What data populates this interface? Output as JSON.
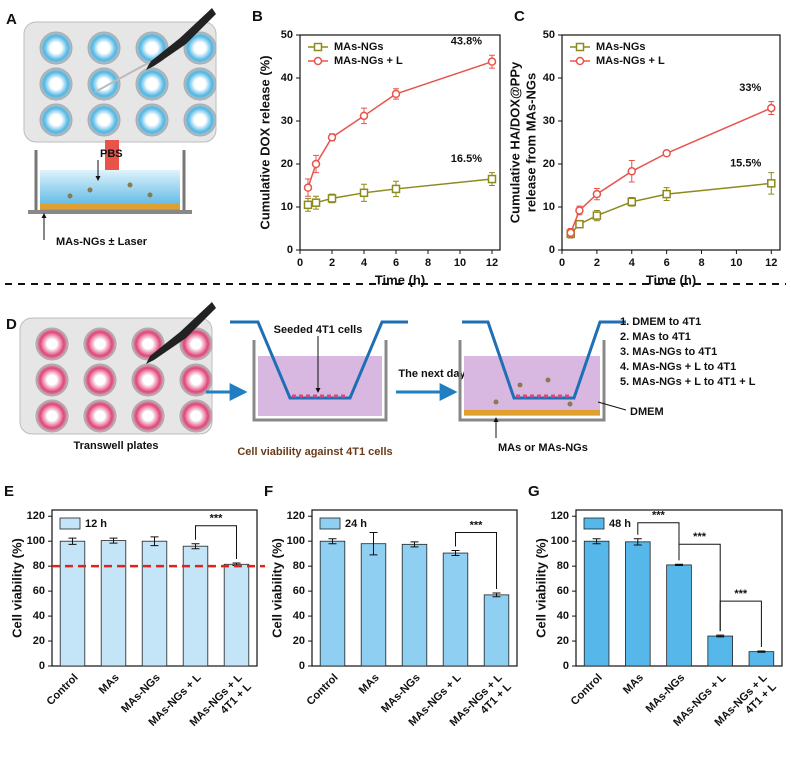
{
  "diagram_a": {
    "panel": "A",
    "labels": [
      "PBS",
      "MAs-NGs ± Laser"
    ]
  },
  "diagram_d": {
    "panel": "D",
    "seeded": "Seeded 4T1 cells",
    "next_day": "The next day",
    "caption": "Cell viability against 4T1 cells",
    "plates": "Transwell plates",
    "medium": "DMEM",
    "added": "MAs or MAs-NGs",
    "groups": [
      "1. DMEM to 4T1",
      "2. MAs to 4T1",
      "3. MAs-NGs to 4T1",
      "4. MAs-NGs + L to 4T1",
      "5. MAs-NGs + L to 4T1 + L"
    ]
  },
  "chart_data": [
    {
      "type": "line",
      "panel": "B",
      "ylabel": "Cumulative DOX release (%)",
      "xlabel": "Time (h)",
      "x": [
        0.5,
        1,
        2,
        4,
        6,
        12
      ],
      "series": [
        {
          "name": "MAs-NGs",
          "color": "#8c8a1c",
          "marker": "square",
          "values": [
            10.5,
            11,
            12,
            13.3,
            14.2,
            16.5
          ],
          "errors": [
            1.5,
            1.5,
            1,
            2,
            1.8,
            1.5
          ]
        },
        {
          "name": "MAs-NGs + L",
          "color": "#e8544c",
          "marker": "circle",
          "values": [
            14.5,
            20,
            26.2,
            31.2,
            36.3,
            43.8
          ],
          "errors": [
            2,
            2,
            0.8,
            1.8,
            1.2,
            1.5
          ]
        }
      ],
      "annotations": [
        "43.8%",
        "16.5%"
      ],
      "xlim": [
        0,
        12.5
      ],
      "xticks": [
        0,
        2,
        4,
        6,
        8,
        10,
        12
      ],
      "ylim": [
        0,
        50
      ],
      "yticks": [
        0,
        10,
        20,
        30,
        40,
        50
      ]
    },
    {
      "type": "line",
      "panel": "C",
      "ylabel": [
        "Cumulative HA/DOX@PPy",
        "release from MAs-NGs"
      ],
      "xlabel": "Time (h)",
      "x": [
        0.5,
        1,
        2,
        4,
        6,
        12
      ],
      "series": [
        {
          "name": "MAs-NGs",
          "color": "#8c8a1c",
          "marker": "square",
          "values": [
            3.8,
            6,
            8,
            11.2,
            13,
            15.5
          ],
          "errors": [
            1,
            0.8,
            1.2,
            1,
            1.5,
            2.5
          ]
        },
        {
          "name": "MAs-NGs + L",
          "color": "#e8544c",
          "marker": "circle",
          "values": [
            4,
            9.2,
            13,
            18.3,
            22.5,
            33
          ],
          "errors": [
            1,
            1,
            1.3,
            2.5,
            0.5,
            1.5
          ]
        }
      ],
      "annotations": [
        "33%",
        "15.5%"
      ],
      "xlim": [
        0,
        12.5
      ],
      "xticks": [
        0,
        2,
        4,
        6,
        8,
        10,
        12
      ],
      "ylim": [
        0,
        50
      ],
      "yticks": [
        0,
        10,
        20,
        30,
        40,
        50
      ]
    },
    {
      "type": "bar",
      "panel": "E",
      "ylabel": "Cell viability (%)",
      "categories": [
        "Control",
        "MAs",
        "MAs-NGs",
        "MAs-NGs + L",
        "MAs-NGs + L\n4T1 + L"
      ],
      "series": [
        {
          "name": "12 h",
          "color": "#c4e5f8",
          "values": [
            100,
            100.5,
            100,
            96,
            81.5
          ],
          "errors": [
            2.5,
            2,
            3.5,
            2,
            1
          ]
        }
      ],
      "annotations": [
        "***"
      ],
      "reference_line": {
        "value": 80,
        "color": "#e0241c"
      },
      "ylim": [
        0,
        125
      ],
      "yticks": [
        0,
        20,
        40,
        60,
        80,
        100,
        120
      ]
    },
    {
      "type": "bar",
      "panel": "F",
      "ylabel": "Cell viability (%)",
      "categories": [
        "Control",
        "MAs",
        "MAs-NGs",
        "MAs-NGs + L",
        "MAs-NGs + L\n4T1 + L"
      ],
      "series": [
        {
          "name": "24 h",
          "color": "#8fd0f2",
          "values": [
            100,
            98,
            97.5,
            90.5,
            57
          ],
          "errors": [
            2,
            9,
            2,
            2,
            1.5
          ]
        }
      ],
      "annotations": [
        "***"
      ],
      "ylim": [
        0,
        125
      ],
      "yticks": [
        0,
        20,
        40,
        60,
        80,
        100,
        120
      ]
    },
    {
      "type": "bar",
      "panel": "G",
      "ylabel": "Cell viability (%)",
      "categories": [
        "Control",
        "MAs",
        "MAs-NGs",
        "MAs-NGs + L",
        "MAs-NGs + L\n4T1 + L"
      ],
      "series": [
        {
          "name": "48 h",
          "color": "#56b7ea",
          "values": [
            100,
            99.5,
            81,
            24,
            11.5
          ],
          "errors": [
            2,
            2.5,
            0.5,
            0.7,
            0.5
          ]
        }
      ],
      "annotations": [
        "***",
        "***",
        "***"
      ],
      "ylim": [
        0,
        125
      ],
      "yticks": [
        0,
        20,
        40,
        60,
        80,
        100,
        120
      ]
    }
  ]
}
